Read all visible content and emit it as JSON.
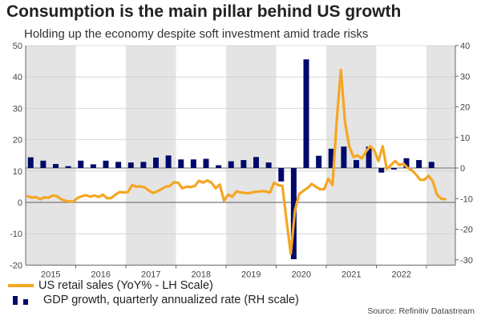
{
  "title": "Consumption is the main pillar behind US growth",
  "subtitle": "Holding up the economy despite soft investment amid trade risks",
  "source": "Source: Refinitiv Datastream",
  "colors": {
    "retail": "#f5a623",
    "gdp": "#000a6b",
    "band": "#e4e4e4"
  },
  "chart_data": {
    "type": "bar+line",
    "title": "Consumption is the main pillar behind US growth",
    "x_tick_labels": [
      "2015",
      "2016",
      "2017",
      "2018",
      "2019",
      "2020",
      "2021",
      "2022"
    ],
    "x_range": [
      "2015-01",
      "2023-07"
    ],
    "left_axis": {
      "ticks": [
        50,
        40,
        30,
        20,
        10,
        0,
        -10,
        -20
      ],
      "ylim": [
        -20,
        50
      ]
    },
    "right_axis": {
      "ticks": [
        40,
        30,
        20,
        10,
        0,
        -10,
        -20,
        -30
      ],
      "ylim": [
        -30,
        40
      ]
    },
    "legend": [
      {
        "label": "US retail sales (YoY% - LH Scale)",
        "type": "line"
      },
      {
        "label": "GDP growth, quarterly annualized rate (RH scale)",
        "type": "bar"
      }
    ],
    "series": [
      {
        "name": "US retail sales (YoY% - LH Scale)",
        "axis": "left",
        "frequency": "monthly",
        "start": "2015-01",
        "values": [
          2,
          1.5,
          1.7,
          1,
          1.6,
          1.5,
          2.2,
          2,
          1,
          0.5,
          0.3,
          0.3,
          1.5,
          2,
          2.3,
          1.8,
          2.2,
          1.7,
          2.5,
          1.3,
          1.4,
          2.5,
          3.3,
          3.2,
          3.3,
          5.5,
          5,
          5.1,
          4.8,
          3.8,
          3,
          3.5,
          4.2,
          5,
          5.2,
          6.4,
          6.3,
          4.5,
          5,
          4.9,
          5.2,
          6.9,
          6.3,
          7,
          6.3,
          4.5,
          5.7,
          0.5,
          2.5,
          1.8,
          3.5,
          3.2,
          3,
          2.9,
          3.3,
          3.4,
          3.6,
          3.5,
          3.1,
          6.3,
          5.5,
          5.2,
          -6,
          -16.4,
          -2.6,
          2.6,
          3.7,
          4.6,
          5.9,
          5,
          4.2,
          4.2,
          7.6,
          5.5,
          26,
          42.3,
          25.6,
          17.9,
          14.5,
          15,
          14,
          16.2,
          17.9,
          16.6,
          13.2,
          17.9,
          10.6,
          11.9,
          13.2,
          11.9,
          12.3,
          11,
          10.2,
          8.9,
          7.2,
          7.2,
          8.5,
          6.8,
          2.5,
          1.2,
          1.0
        ]
      },
      {
        "name": "GDP growth, quarterly annualized rate (RH scale)",
        "axis": "right",
        "frequency": "quarterly",
        "start": "2015-Q1",
        "values": [
          3.5,
          2.4,
          1.3,
          0.6,
          2.4,
          1.2,
          2.4,
          2.0,
          1.8,
          2.0,
          3.4,
          4.1,
          2.8,
          2.8,
          3.0,
          0.9,
          2.2,
          2.6,
          3.6,
          1.8,
          -4.4,
          -29.8,
          35.5,
          4.0,
          6.3,
          7.0,
          2.6,
          7.0,
          -1.5,
          -0.5,
          3.2,
          2.6,
          2.0
        ]
      }
    ]
  }
}
